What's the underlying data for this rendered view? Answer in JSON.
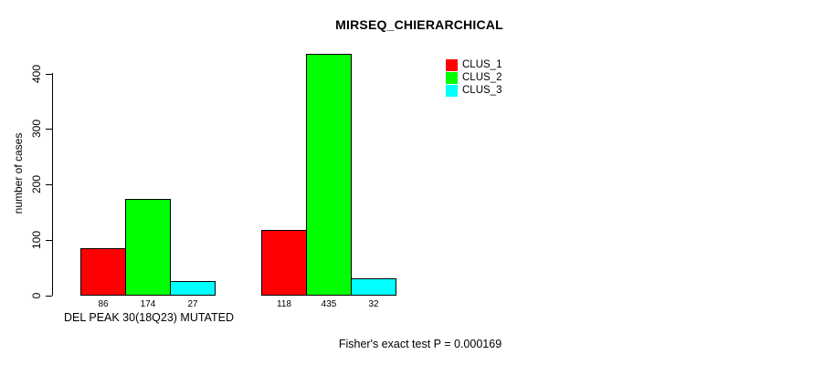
{
  "title": "MIRSEQ_CHIERARCHICAL",
  "colors": {
    "background": "#FFFFFF",
    "axis": "#000000",
    "bar_border": "#000000",
    "clus_1": "#FF0000",
    "clus_2": "#00FF00",
    "clus_3": "#00FFFF"
  },
  "chart_data": {
    "type": "bar",
    "title": "MIRSEQ_CHIERARCHICAL",
    "ylabel": "number of cases",
    "xlabel": "DEL PEAK 30(18Q23) MUTATED",
    "ylim": [
      0,
      435
    ],
    "yticks": [
      0,
      100,
      200,
      300,
      400
    ],
    "grid": false,
    "legend_position": "top-right",
    "series": [
      {
        "name": "CLUS_1",
        "color": "#FF0000",
        "values": [
          86,
          118
        ]
      },
      {
        "name": "CLUS_2",
        "color": "#00FF00",
        "values": [
          174,
          435
        ]
      },
      {
        "name": "CLUS_3",
        "color": "#00FFFF",
        "values": [
          27,
          32
        ]
      }
    ],
    "groups": [
      {
        "label": "DEL PEAK 30(18Q23) MUTATED",
        "values": [
          86,
          174,
          27
        ],
        "bar_labels": [
          "86",
          "174",
          "27"
        ]
      },
      {
        "label": "",
        "values": [
          118,
          435,
          32
        ],
        "bar_labels": [
          "118",
          "435",
          "32"
        ]
      }
    ],
    "footnote": "Fisher's exact test P = 0.000169"
  }
}
